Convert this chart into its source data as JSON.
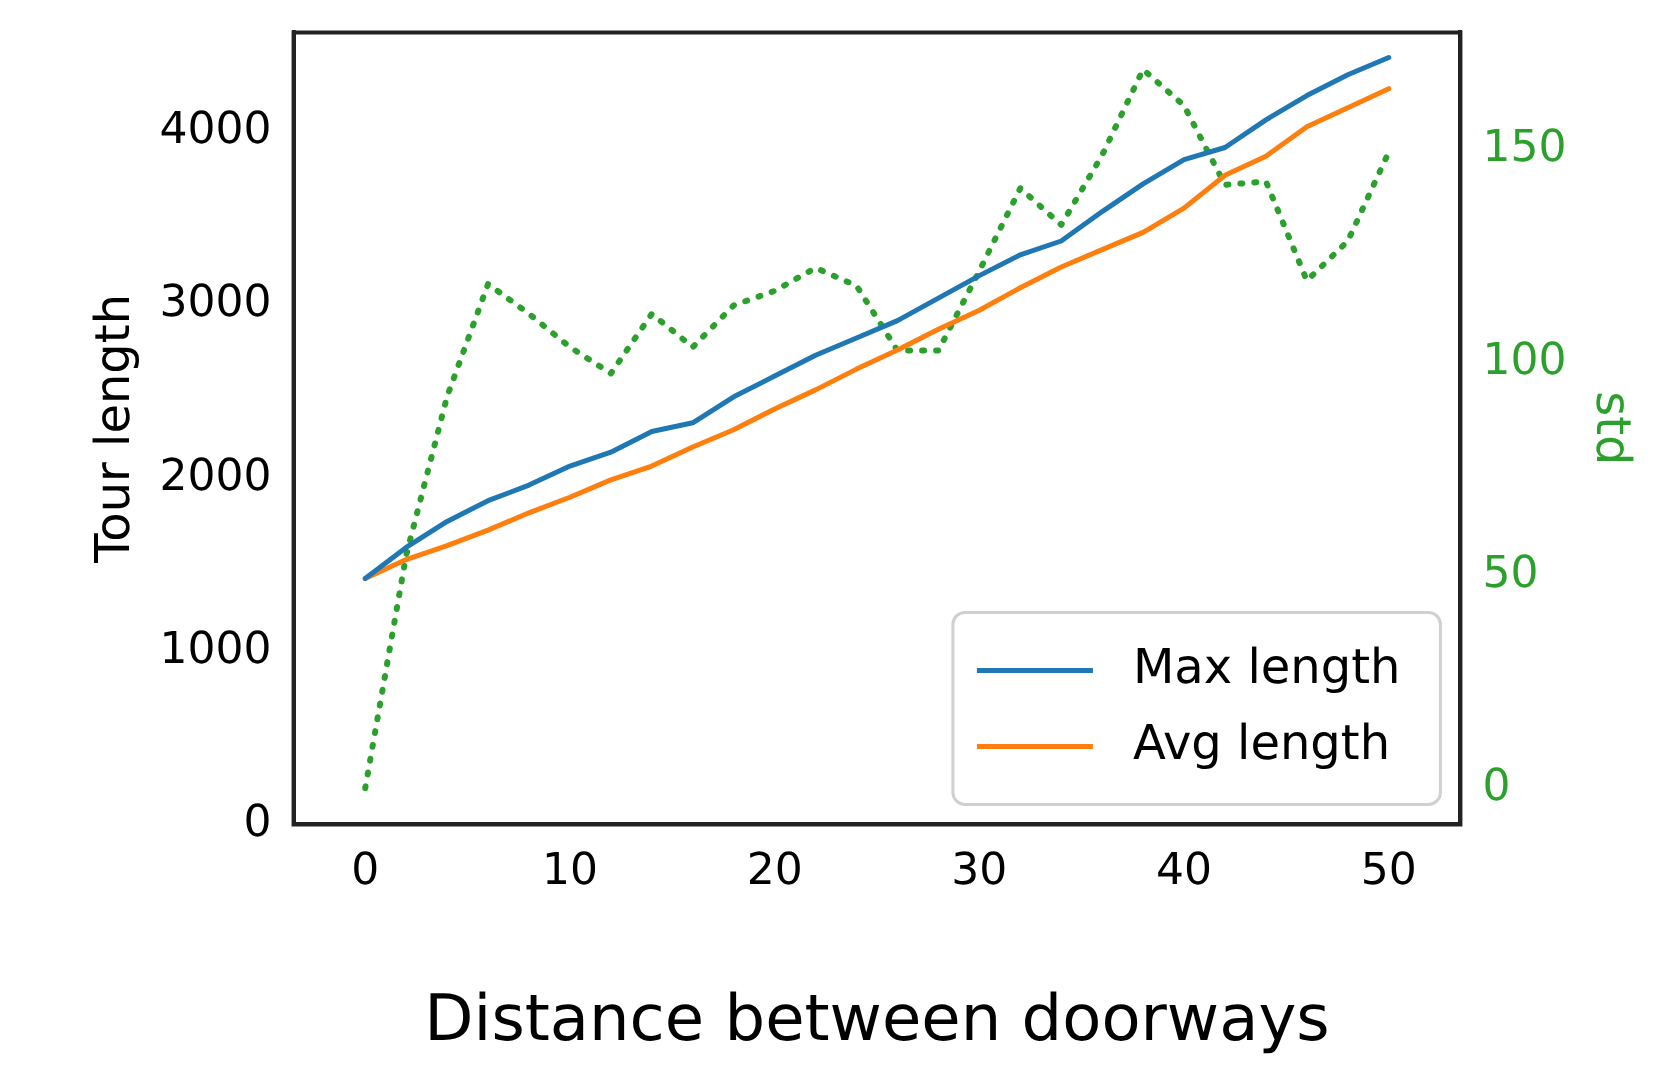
{
  "chart_data": {
    "type": "line",
    "xlabel": "Distance between doorways",
    "ylabel": "Tour length",
    "y2label": "std",
    "x": [
      0,
      2,
      4,
      6,
      8,
      10,
      12,
      14,
      16,
      18,
      20,
      22,
      24,
      26,
      28,
      30,
      32,
      34,
      36,
      38,
      40,
      42,
      44,
      46,
      48,
      50
    ],
    "series": [
      {
        "name": "Max length",
        "color": "#1f77b4",
        "values": [
          1420,
          1600,
          1750,
          1870,
          1960,
          2070,
          2150,
          2270,
          2320,
          2470,
          2590,
          2710,
          2810,
          2910,
          3040,
          3170,
          3290,
          3370,
          3540,
          3700,
          3840,
          3910,
          4070,
          4210,
          4330,
          4430
        ]
      },
      {
        "name": "Avg length",
        "color": "#ff7f0e",
        "values": [
          1420,
          1530,
          1610,
          1700,
          1800,
          1890,
          1990,
          2070,
          2180,
          2280,
          2400,
          2510,
          2630,
          2740,
          2860,
          2970,
          3100,
          3220,
          3320,
          3420,
          3560,
          3750,
          3860,
          4030,
          4140,
          4250
        ]
      },
      {
        "color": "#2ca02c",
        "axis": "y2",
        "line_style": "dotted",
        "values": [
          0,
          54.7,
          92,
          118.4,
          111.4,
          103.6,
          97.4,
          111.4,
          103.6,
          113.4,
          116.8,
          122.2,
          118,
          102.8,
          102.8,
          121.5,
          140.9,
          132.3,
          148.7,
          168.8,
          160.3,
          141.7,
          142.5,
          119.2,
          128.5,
          149.4
        ]
      }
    ],
    "xlim": [
      -3.5,
      53.5
    ],
    "xticks": [
      0,
      10,
      20,
      30,
      40,
      50
    ],
    "ylim": [
      0,
      4575
    ],
    "yticks": [
      0,
      1000,
      2000,
      3000,
      4000
    ],
    "y2lim": [
      -8.5,
      177.5
    ],
    "y2ticks": [
      0,
      50,
      100,
      150
    ],
    "legend": "bottom right",
    "marker": "none",
    "line_style": "solid",
    "grid": false
  }
}
